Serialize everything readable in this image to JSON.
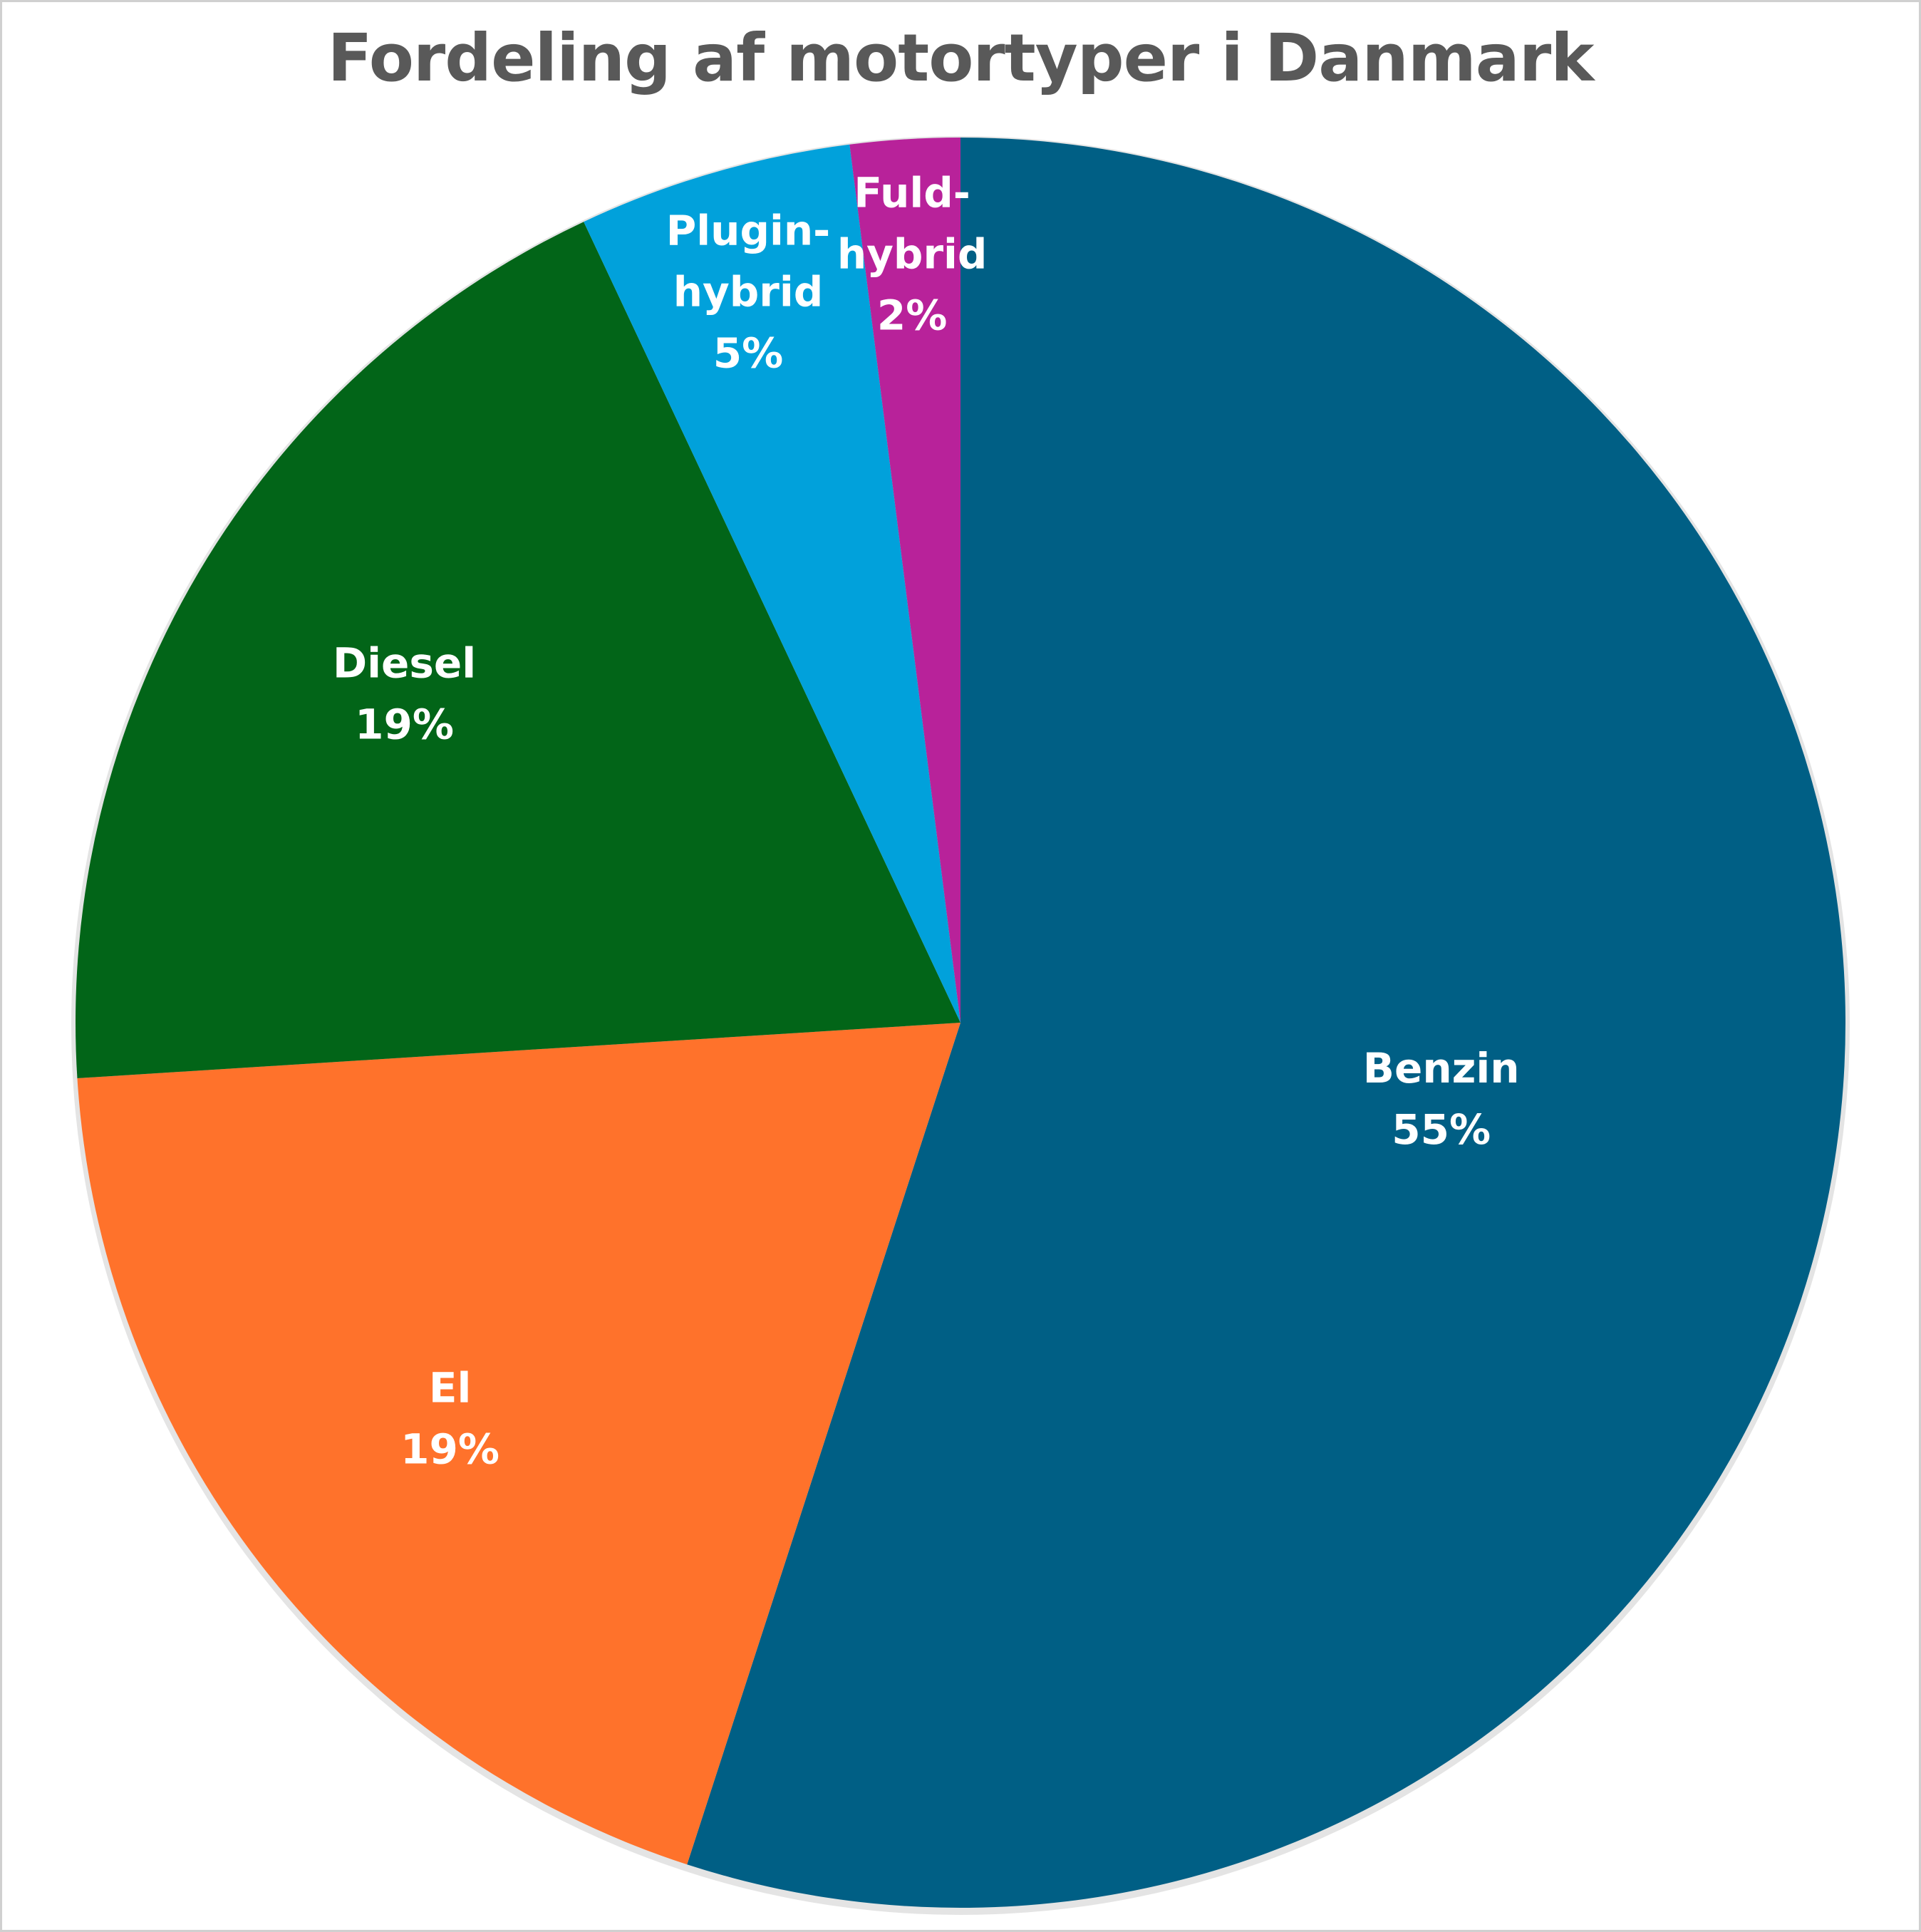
{
  "chart_data": {
    "type": "pie",
    "title": "Fordeling af motortyper i Danmark",
    "slices": [
      {
        "label": [
          "Benzin"
        ],
        "value": 55,
        "value_label": "55%",
        "color": "#005f85"
      },
      {
        "label": [
          "El"
        ],
        "value": 19,
        "value_label": "19%",
        "color": "#ff722b"
      },
      {
        "label": [
          "Diesel"
        ],
        "value": 19,
        "value_label": "19%",
        "color": "#026518"
      },
      {
        "label": [
          "Plugin-",
          "hybrid"
        ],
        "value": 5,
        "value_label": "5%",
        "color": "#01a1db"
      },
      {
        "label": [
          "Fuld-",
          "hybrid"
        ],
        "value": 2,
        "value_label": "2%",
        "color": "#b8229a"
      }
    ],
    "start": "12 o'clock",
    "direction": "clockwise",
    "data_labels": "inside"
  }
}
